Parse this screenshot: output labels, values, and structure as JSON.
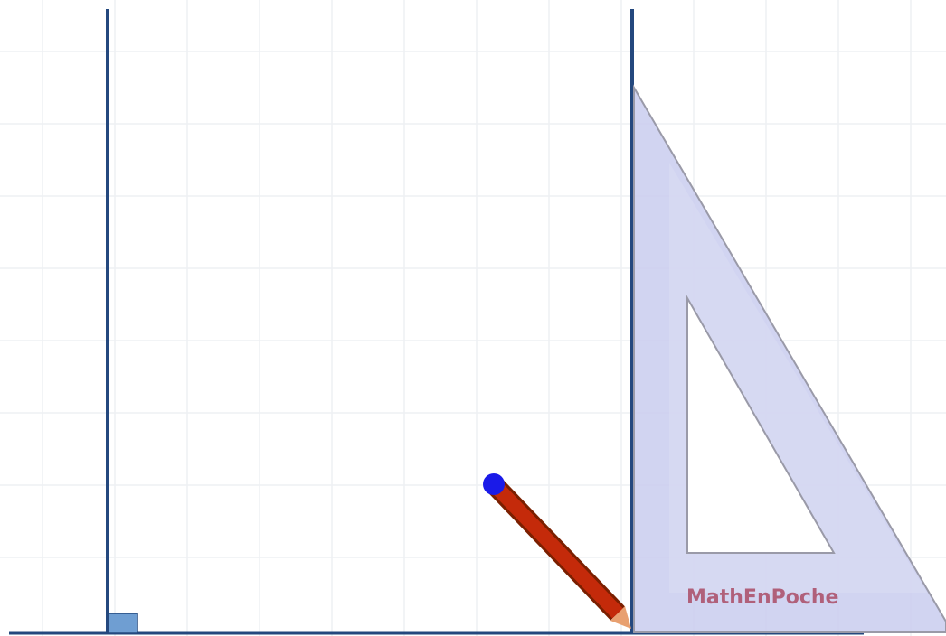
{
  "set_square": {
    "label": "MathEnPoche"
  }
}
